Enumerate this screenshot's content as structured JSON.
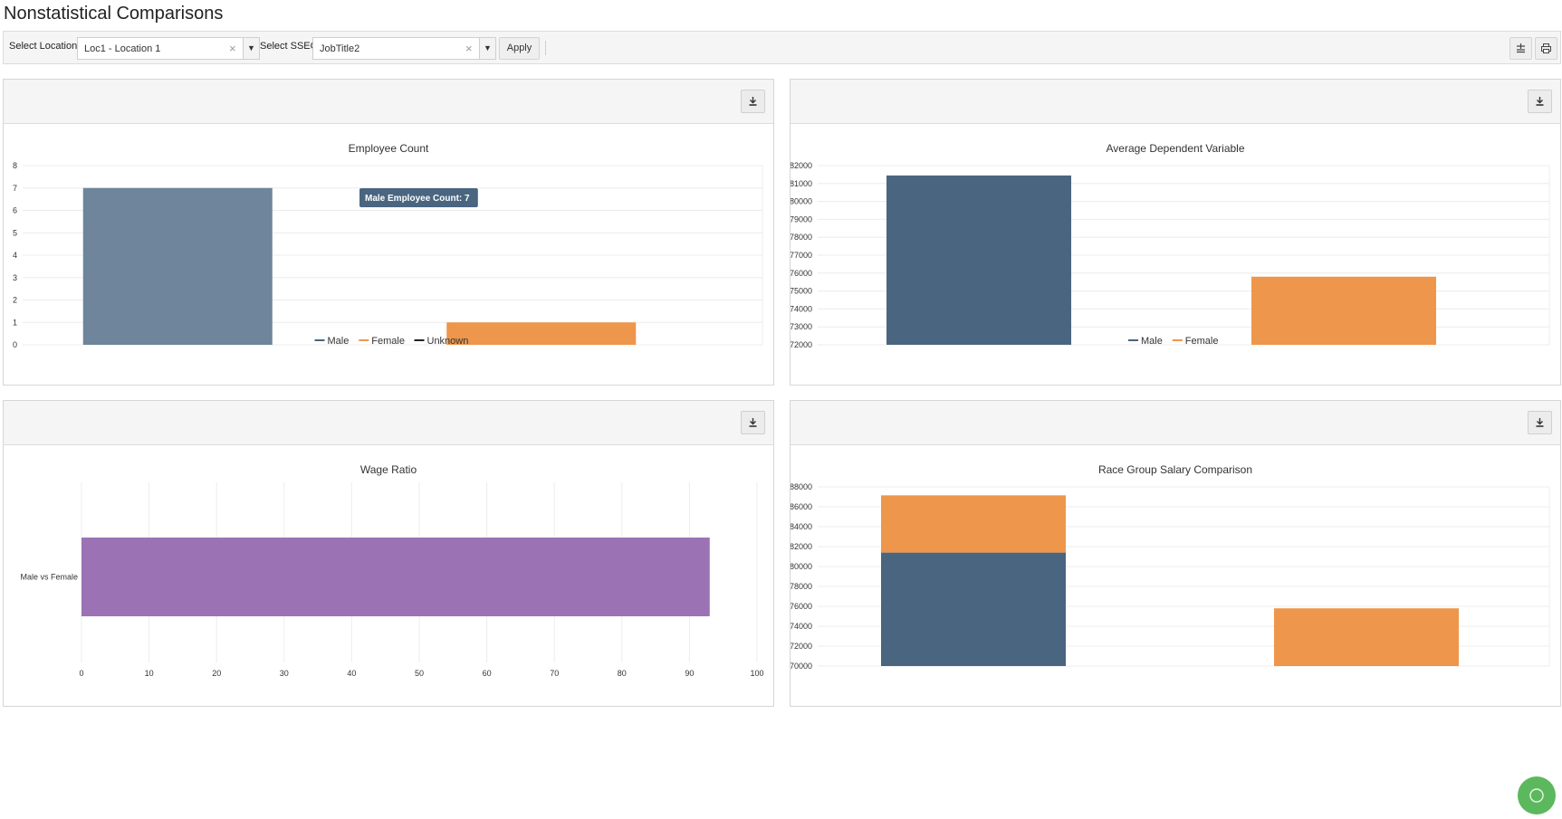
{
  "page": {
    "title": "Nonstatistical Comparisons"
  },
  "toolbar": {
    "location_label": "Select Location",
    "location_value": "Loc1 - Location 1",
    "sseg_label": "Select SSEG",
    "sseg_value": "JobTitle2",
    "apply_label": "Apply",
    "clear_glyph": "×",
    "arrow_glyph": "▼"
  },
  "icons": {
    "download": "download-icon",
    "filter_settings": "sliders-icon",
    "print": "print-icon",
    "help_fab": "help-icon"
  },
  "colors": {
    "male": "#4a6580",
    "male_highlight": "#6e859b",
    "female": "#ee964b",
    "unknown": "#222222",
    "wage_bar": "#9b73b5",
    "tooltip_bg": "#4a6580",
    "fab": "#5cb85c"
  },
  "chart_data": [
    {
      "id": "employee-count",
      "type": "bar",
      "title": "Employee Count",
      "categories": [
        "Male",
        "Female"
      ],
      "series": [
        {
          "name": "Male",
          "values": [
            7,
            null
          ]
        },
        {
          "name": "Female",
          "values": [
            null,
            1
          ]
        },
        {
          "name": "Unknown",
          "values": [
            null,
            null
          ]
        }
      ],
      "ylim": [
        0,
        8
      ],
      "yticks": [
        "0",
        "1",
        "2",
        "3",
        "4",
        "5",
        "6",
        "7",
        "8"
      ],
      "legend": [
        "Male",
        "Female",
        "Unknown"
      ],
      "legend_position": "bottom",
      "grid": true,
      "tooltip": "Male Employee Count: 7"
    },
    {
      "id": "average-dependent-variable",
      "type": "bar",
      "title": "Average Dependent Variable",
      "categories": [
        "Male",
        "Female"
      ],
      "series": [
        {
          "name": "Male",
          "values": [
            81450,
            null
          ]
        },
        {
          "name": "Female",
          "values": [
            null,
            75800
          ]
        }
      ],
      "ylim": [
        72000,
        82000
      ],
      "yticks": [
        "72000",
        "73000",
        "74000",
        "75000",
        "76000",
        "77000",
        "78000",
        "79000",
        "80000",
        "81000",
        "82000"
      ],
      "legend": [
        "Male",
        "Female"
      ],
      "legend_position": "bottom",
      "grid": true
    },
    {
      "id": "wage-ratio",
      "type": "bar",
      "orientation": "horizontal",
      "title": "Wage Ratio",
      "categories": [
        "Male vs Female"
      ],
      "values": [
        93
      ],
      "xlim": [
        0,
        100
      ],
      "xticks": [
        "0",
        "10",
        "20",
        "30",
        "40",
        "50",
        "60",
        "70",
        "80",
        "90",
        "100"
      ],
      "grid": true
    },
    {
      "id": "race-group-salary-comparison",
      "type": "bar",
      "stacked": true,
      "title": "Race Group Salary Comparison",
      "stacks": [
        [
          {
            "value": 81400,
            "color": "#4a6580"
          },
          {
            "value": 87150,
            "color": "#ee964b"
          }
        ],
        [
          {
            "value": 75800,
            "color": "#ee964b"
          }
        ]
      ],
      "ylim": [
        70000,
        88000
      ],
      "yticks": [
        "70000",
        "72000",
        "74000",
        "76000",
        "78000",
        "80000",
        "82000",
        "84000",
        "86000",
        "88000"
      ],
      "grid": true
    }
  ]
}
